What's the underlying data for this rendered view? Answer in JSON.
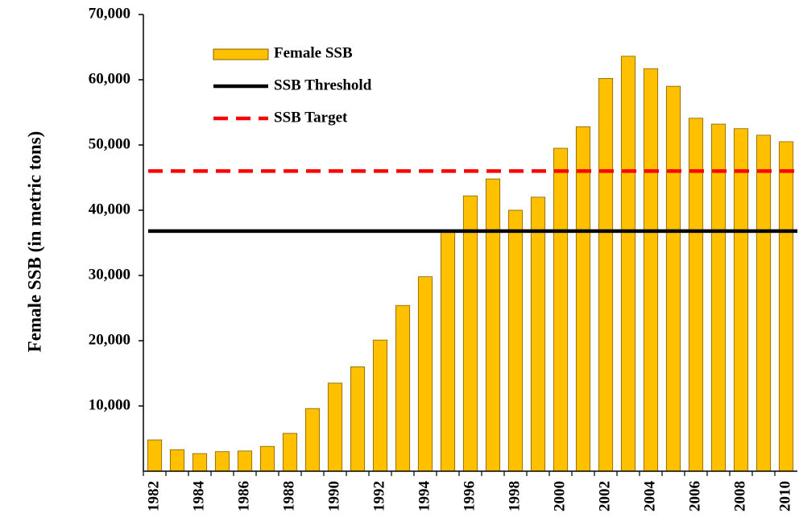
{
  "chart_data": {
    "type": "bar",
    "y_label": "Female SSB (in metric tons)",
    "categories": [
      "1982",
      null,
      "1984",
      null,
      "1986",
      null,
      "1988",
      null,
      "1990",
      null,
      "1992",
      null,
      "1994",
      null,
      "1996",
      null,
      "1998",
      null,
      "2000",
      null,
      "2002",
      null,
      "2004",
      null,
      "2006",
      null,
      "2008",
      null,
      "2010"
    ],
    "series": [
      {
        "name": "Female SSB",
        "color": "#ffc000",
        "values": [
          4800,
          3300,
          2700,
          3000,
          3100,
          3800,
          5800,
          9600,
          13500,
          16000,
          20100,
          25400,
          29800,
          36900,
          42200,
          44800,
          40000,
          42000,
          49500,
          52800,
          60200,
          63600,
          61700,
          59000,
          54100,
          53200,
          52500,
          51500,
          50500
        ]
      }
    ],
    "reference_lines": [
      {
        "name": "SSB Threshold",
        "color": "#000000",
        "value": 36800,
        "dashed": false
      },
      {
        "name": "SSB Target",
        "color": "#ff0000",
        "value": 46000,
        "dashed": true
      }
    ],
    "ylim": [
      0,
      70000
    ],
    "yticks": [
      {
        "value": 10000,
        "label": "10,000"
      },
      {
        "value": 20000,
        "label": "20,000"
      },
      {
        "value": 30000,
        "label": "30,000"
      },
      {
        "value": 40000,
        "label": "40,000"
      },
      {
        "value": 50000,
        "label": "50,000"
      },
      {
        "value": 60000,
        "label": "60,000"
      },
      {
        "value": 70000,
        "label": "70,000"
      }
    ]
  }
}
